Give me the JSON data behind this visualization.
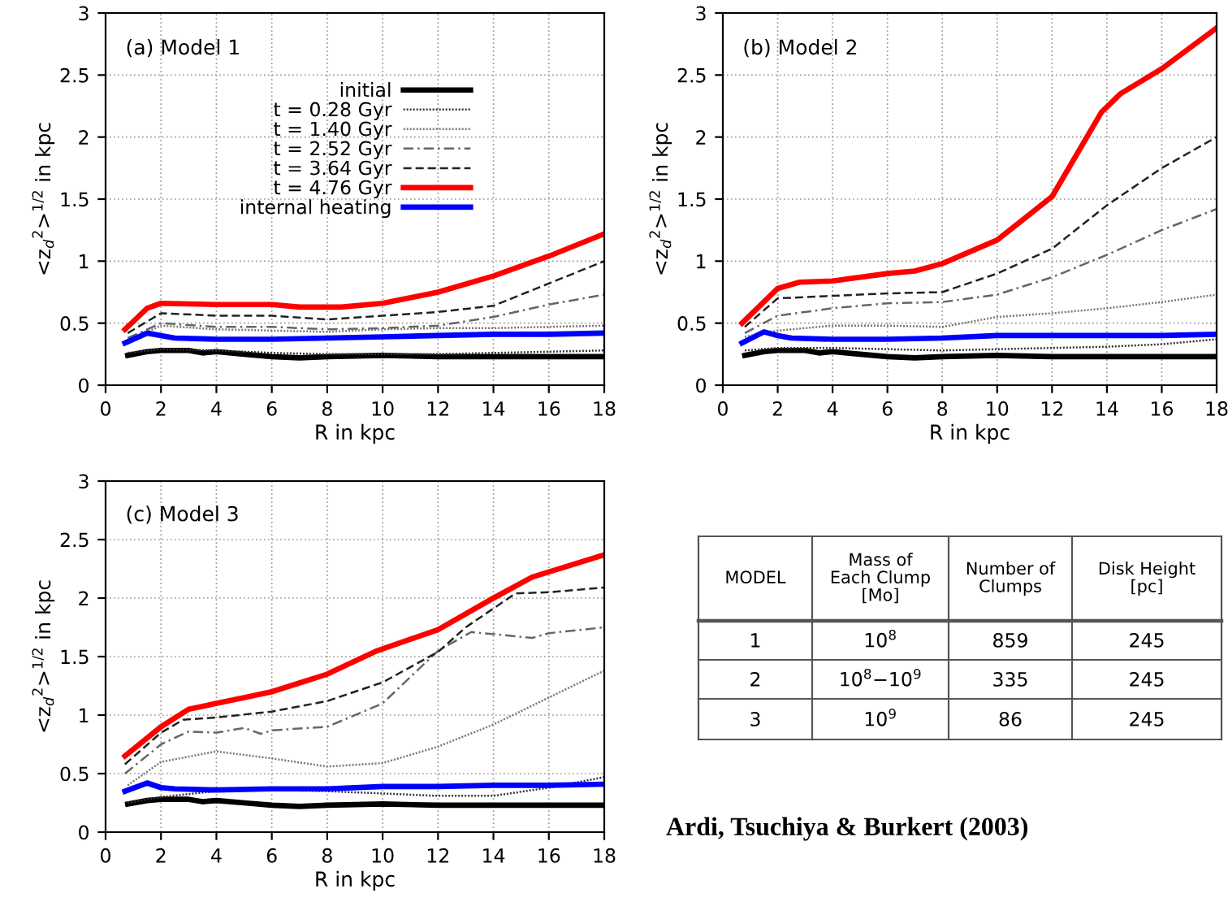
{
  "chart_data": [
    {
      "type": "line",
      "title": "(a) Model 1",
      "xlabel": "R in kpc",
      "ylabel": "<z$_{d}$$^{2}$>$^{1/2}$ in kpc",
      "xlim": [
        0,
        18
      ],
      "ylim": [
        0,
        3
      ],
      "xticks": [
        0,
        2,
        4,
        6,
        8,
        10,
        12,
        14,
        16,
        18
      ],
      "yticks": [
        0,
        0.5,
        1,
        1.5,
        2,
        2.5,
        3
      ],
      "grid": true,
      "legend": "top",
      "series": [
        {
          "name": "initial",
          "color": "#000000",
          "line_style": "solid",
          "x": [
            0.8,
            1.5,
            2,
            3,
            3.5,
            4,
            5,
            6,
            7,
            8,
            10,
            12,
            14,
            16,
            18
          ],
          "values": [
            0.24,
            0.27,
            0.28,
            0.28,
            0.26,
            0.27,
            0.25,
            0.23,
            0.22,
            0.23,
            0.24,
            0.23,
            0.23,
            0.23,
            0.23
          ]
        },
        {
          "name": "t = 0.28 Gyr",
          "color": "#333333",
          "line_style": "dotted",
          "x": [
            0.8,
            2,
            4,
            6,
            8,
            10,
            12,
            14,
            16,
            18
          ],
          "values": [
            0.26,
            0.29,
            0.28,
            0.26,
            0.25,
            0.25,
            0.25,
            0.26,
            0.27,
            0.28
          ]
        },
        {
          "name": "t = 1.40 Gyr",
          "color": "#777777",
          "line_style": "dotted",
          "x": [
            0.8,
            2,
            4,
            6,
            8,
            10,
            12,
            14,
            16,
            18
          ],
          "values": [
            0.36,
            0.48,
            0.45,
            0.44,
            0.43,
            0.45,
            0.46,
            0.46,
            0.47,
            0.48
          ]
        },
        {
          "name": "t = 2.52 Gyr",
          "color": "#666666",
          "line_style": "dashdot",
          "x": [
            0.8,
            2,
            4,
            6,
            8,
            10,
            12,
            14,
            16,
            18
          ],
          "values": [
            0.38,
            0.5,
            0.47,
            0.47,
            0.45,
            0.46,
            0.48,
            0.55,
            0.65,
            0.73
          ]
        },
        {
          "name": "t = 3.64 Gyr",
          "color": "#222222",
          "line_style": "dashed",
          "x": [
            0.8,
            2,
            4,
            6,
            8,
            10,
            12,
            14,
            16,
            18
          ],
          "values": [
            0.42,
            0.58,
            0.56,
            0.56,
            0.53,
            0.56,
            0.59,
            0.64,
            0.82,
            1.0
          ]
        },
        {
          "name": "t = 4.76 Gyr",
          "color": "#ff0000",
          "line_style": "solid",
          "x": [
            0.7,
            1.5,
            2,
            4,
            6,
            7,
            8.5,
            10,
            12,
            14,
            16,
            18
          ],
          "values": [
            0.45,
            0.62,
            0.66,
            0.65,
            0.65,
            0.63,
            0.63,
            0.66,
            0.75,
            0.88,
            1.04,
            1.22
          ]
        },
        {
          "name": "internal heating",
          "color": "#0000ff",
          "line_style": "solid",
          "x": [
            0.7,
            1.5,
            2,
            2.5,
            4,
            6,
            8,
            10,
            12,
            14,
            16,
            18
          ],
          "values": [
            0.34,
            0.42,
            0.4,
            0.38,
            0.37,
            0.37,
            0.38,
            0.39,
            0.4,
            0.41,
            0.41,
            0.42
          ]
        }
      ]
    },
    {
      "type": "line",
      "title": "(b) Model 2",
      "xlabel": "R in kpc",
      "ylabel": "<z$_{d}$$^{2}$>$^{1/2}$ in kpc",
      "xlim": [
        0,
        18
      ],
      "ylim": [
        0,
        3
      ],
      "xticks": [
        0,
        2,
        4,
        6,
        8,
        10,
        12,
        14,
        16,
        18
      ],
      "yticks": [
        0,
        0.5,
        1,
        1.5,
        2,
        2.5,
        3
      ],
      "grid": true,
      "series": [
        {
          "color": "#000000",
          "line_style": "solid",
          "x": [
            0.8,
            1.5,
            2,
            3,
            3.5,
            4,
            5,
            6,
            7,
            8,
            10,
            12,
            14,
            16,
            18
          ],
          "values": [
            0.24,
            0.27,
            0.28,
            0.28,
            0.26,
            0.27,
            0.25,
            0.23,
            0.22,
            0.23,
            0.24,
            0.23,
            0.23,
            0.23,
            0.23
          ]
        },
        {
          "color": "#333333",
          "line_style": "dotted",
          "x": [
            0.8,
            2,
            4,
            6,
            8,
            10,
            12,
            14,
            16,
            18
          ],
          "values": [
            0.28,
            0.3,
            0.3,
            0.29,
            0.28,
            0.29,
            0.3,
            0.31,
            0.33,
            0.37
          ]
        },
        {
          "color": "#777777",
          "line_style": "dotted",
          "x": [
            0.8,
            2,
            4,
            6,
            8,
            10,
            12,
            14,
            16,
            18
          ],
          "values": [
            0.39,
            0.44,
            0.48,
            0.48,
            0.47,
            0.55,
            0.58,
            0.62,
            0.67,
            0.73
          ]
        },
        {
          "color": "#666666",
          "line_style": "dashdot",
          "x": [
            0.8,
            2,
            4,
            6,
            8,
            10,
            12,
            14,
            16,
            18
          ],
          "values": [
            0.42,
            0.56,
            0.62,
            0.66,
            0.67,
            0.73,
            0.87,
            1.05,
            1.25,
            1.42
          ]
        },
        {
          "color": "#222222",
          "line_style": "dashed",
          "x": [
            0.8,
            2,
            4,
            6,
            8,
            10,
            12,
            14,
            16,
            18
          ],
          "values": [
            0.47,
            0.7,
            0.72,
            0.74,
            0.75,
            0.9,
            1.1,
            1.45,
            1.75,
            2.0
          ]
        },
        {
          "color": "#ff0000",
          "line_style": "solid",
          "x": [
            0.7,
            2,
            2.8,
            4,
            6,
            7,
            8,
            10,
            12,
            13.8,
            14.5,
            16,
            18
          ],
          "values": [
            0.5,
            0.78,
            0.83,
            0.84,
            0.9,
            0.92,
            0.98,
            1.17,
            1.52,
            2.2,
            2.35,
            2.55,
            2.88
          ]
        },
        {
          "color": "#0000ff",
          "line_style": "solid",
          "x": [
            0.7,
            1.5,
            2,
            2.5,
            4,
            6,
            8,
            10,
            12,
            14,
            16,
            18
          ],
          "values": [
            0.34,
            0.43,
            0.4,
            0.38,
            0.37,
            0.37,
            0.38,
            0.4,
            0.4,
            0.4,
            0.4,
            0.41
          ]
        }
      ]
    },
    {
      "type": "line",
      "title": "(c) Model 3",
      "xlabel": "R in kpc",
      "ylabel": "<z$_{d}$$^{2}$>$^{1/2}$ in kpc",
      "xlim": [
        0,
        18
      ],
      "ylim": [
        0,
        3
      ],
      "xticks": [
        0,
        2,
        4,
        6,
        8,
        10,
        12,
        14,
        16,
        18
      ],
      "yticks": [
        0,
        0.5,
        1,
        1.5,
        2,
        2.5,
        3
      ],
      "grid": true,
      "series": [
        {
          "color": "#000000",
          "line_style": "solid",
          "x": [
            0.8,
            1.5,
            2,
            3,
            3.5,
            4,
            5,
            6,
            7,
            8,
            10,
            12,
            14,
            16,
            18
          ],
          "values": [
            0.24,
            0.27,
            0.28,
            0.28,
            0.26,
            0.27,
            0.25,
            0.23,
            0.22,
            0.23,
            0.24,
            0.23,
            0.23,
            0.23,
            0.23
          ]
        },
        {
          "color": "#333333",
          "line_style": "dotted",
          "x": [
            0.8,
            2,
            4,
            6,
            8,
            10,
            12,
            14,
            16,
            18
          ],
          "values": [
            0.25,
            0.3,
            0.35,
            0.36,
            0.35,
            0.33,
            0.31,
            0.31,
            0.38,
            0.47
          ]
        },
        {
          "color": "#777777",
          "line_style": "dotted",
          "x": [
            0.8,
            2,
            4,
            6,
            8,
            10,
            12,
            14,
            16,
            18
          ],
          "values": [
            0.4,
            0.6,
            0.69,
            0.63,
            0.56,
            0.59,
            0.73,
            0.92,
            1.15,
            1.38
          ]
        },
        {
          "color": "#666666",
          "line_style": "dashdot",
          "x": [
            0.7,
            2,
            3,
            4,
            5,
            5.6,
            6,
            8,
            10,
            12,
            13.2,
            15.4,
            16,
            18
          ],
          "values": [
            0.5,
            0.75,
            0.86,
            0.85,
            0.89,
            0.84,
            0.87,
            0.9,
            1.1,
            1.55,
            1.71,
            1.66,
            1.7,
            1.75
          ]
        },
        {
          "color": "#222222",
          "line_style": "dashed",
          "x": [
            0.7,
            2,
            2.8,
            4,
            6,
            8,
            10,
            12,
            13,
            14.8,
            16,
            18
          ],
          "values": [
            0.58,
            0.85,
            0.96,
            0.98,
            1.03,
            1.12,
            1.28,
            1.54,
            1.75,
            2.04,
            2.05,
            2.09
          ]
        },
        {
          "color": "#ff0000",
          "line_style": "solid",
          "x": [
            0.7,
            2,
            3,
            4,
            5,
            6,
            8,
            9.8,
            12,
            14,
            15.4,
            18
          ],
          "values": [
            0.65,
            0.9,
            1.05,
            1.1,
            1.15,
            1.2,
            1.35,
            1.55,
            1.73,
            2.0,
            2.18,
            2.37
          ]
        },
        {
          "color": "#0000ff",
          "line_style": "solid",
          "x": [
            0.7,
            1.5,
            2,
            2.5,
            4,
            6,
            8,
            10,
            12,
            14,
            16,
            18
          ],
          "values": [
            0.35,
            0.42,
            0.38,
            0.37,
            0.36,
            0.37,
            0.37,
            0.39,
            0.39,
            0.4,
            0.4,
            0.41
          ]
        }
      ]
    },
    {
      "type": "other",
      "categories": [
        "MODEL",
        "Mass of\nEach Clump\n[Mo]",
        "Number of\nClumps",
        "Disk Height\n[pc]"
      ],
      "cell_labels": [
        [
          "1",
          "10$^{8}$",
          "859",
          "245"
        ],
        [
          "2",
          "10$^{8}$−10$^{9}$",
          "335",
          "245"
        ],
        [
          "3",
          "10$^{9}$",
          "86",
          "245"
        ]
      ],
      "annotations": [
        "Ardi, Tsuchiya & Burkert (2003)"
      ]
    }
  ]
}
